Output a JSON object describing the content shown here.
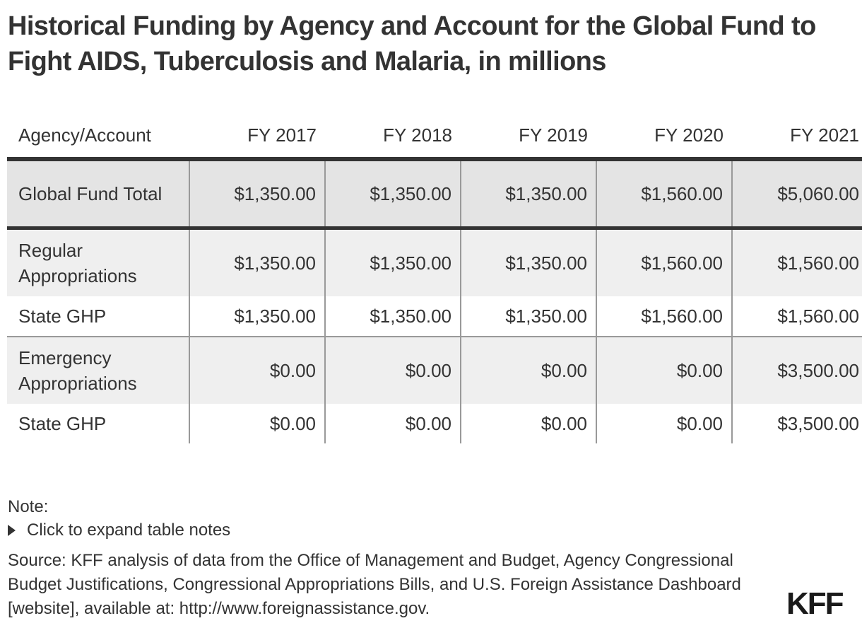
{
  "title": "Historical Funding by Agency and Account for the Global Fund to Fight AIDS, Tuberculosis and Malaria, in millions",
  "table": {
    "headers": [
      "Agency/Account",
      "FY 2017",
      "FY 2018",
      "FY 2019",
      "FY 2020",
      "FY 2021"
    ],
    "rows": [
      {
        "label": "Global Fund Total",
        "values": [
          "$1,350.00",
          "$1,350.00",
          "$1,350.00",
          "$1,560.00",
          "$5,060.00"
        ]
      },
      {
        "label": "Regular Appropriations",
        "values": [
          "$1,350.00",
          "$1,350.00",
          "$1,350.00",
          "$1,560.00",
          "$1,560.00"
        ]
      },
      {
        "label": "State GHP",
        "values": [
          "$1,350.00",
          "$1,350.00",
          "$1,350.00",
          "$1,560.00",
          "$1,560.00"
        ]
      },
      {
        "label": "Emergency Appropriations",
        "values": [
          "$0.00",
          "$0.00",
          "$0.00",
          "$0.00",
          "$3,500.00"
        ]
      },
      {
        "label": "State GHP",
        "values": [
          "$0.00",
          "$0.00",
          "$0.00",
          "$0.00",
          "$3,500.00"
        ]
      }
    ]
  },
  "footer": {
    "note_label": "Note:",
    "expand_label": "Click to expand table notes",
    "source": "Source: KFF analysis of data from the Office of Management and Budget, Agency Congressional Budget Justifications, Congressional Appropriations Bills, and U.S. Foreign Assistance Dashboard [website], available at: http://www.foreignassistance.gov.",
    "logo": "KFF"
  },
  "colors": {
    "text": "#333333",
    "total_row_bg": "#e4e4e4",
    "shade_row_bg": "#efefef",
    "rule": "#333333",
    "grid": "#999999"
  },
  "chart_data": {
    "type": "table",
    "title": "Historical Funding by Agency and Account for the Global Fund to Fight AIDS, Tuberculosis and Malaria, in millions",
    "columns": [
      "Agency/Account",
      "FY 2017",
      "FY 2018",
      "FY 2019",
      "FY 2020",
      "FY 2021"
    ],
    "categories": [
      "FY 2017",
      "FY 2018",
      "FY 2019",
      "FY 2020",
      "FY 2021"
    ],
    "series": [
      {
        "name": "Global Fund Total",
        "values": [
          1350.0,
          1350.0,
          1350.0,
          1560.0,
          5060.0
        ]
      },
      {
        "name": "Regular Appropriations",
        "values": [
          1350.0,
          1350.0,
          1350.0,
          1560.0,
          1560.0
        ]
      },
      {
        "name": "Regular Appropriations - State GHP",
        "values": [
          1350.0,
          1350.0,
          1350.0,
          1560.0,
          1560.0
        ]
      },
      {
        "name": "Emergency Appropriations",
        "values": [
          0.0,
          0.0,
          0.0,
          0.0,
          3500.0
        ]
      },
      {
        "name": "Emergency Appropriations - State GHP",
        "values": [
          0.0,
          0.0,
          0.0,
          0.0,
          3500.0
        ]
      }
    ],
    "units": "USD millions"
  }
}
